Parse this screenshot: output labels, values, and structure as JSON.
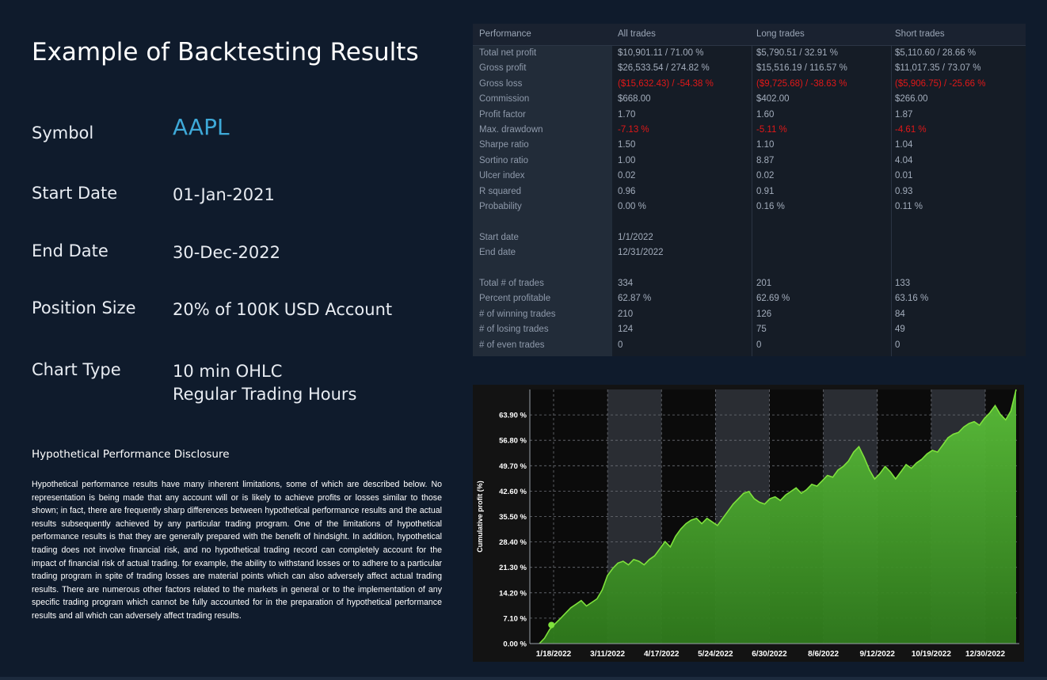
{
  "page": {
    "title": "Example of Backtesting Results"
  },
  "settings": [
    {
      "label": "Symbol",
      "value": "AAPL"
    },
    {
      "label": "Start Date",
      "value": "01-Jan-2021"
    },
    {
      "label": "End Date",
      "value": "30-Dec-2022"
    },
    {
      "label": "Position Size",
      "value": "20% of 100K USD Account"
    },
    {
      "label": "Chart Type",
      "value": "10 min OHLC",
      "value2": "Regular Trading Hours"
    }
  ],
  "disclosure": {
    "heading": "Hypothetical Performance Disclosure",
    "text": "Hypothetical performance results have many inherent limitations, some of which are described below. No representation is being made that any account will or is likely to achieve profits or losses similar to those shown; in fact, there are frequently sharp differences between hypothetical performance results and the actual results subsequently achieved by any particular trading program. One of the limitations of hypothetical performance results is that they are generally prepared with the benefit of hindsight. In addition, hypothetical trading does not involve financial risk, and no hypothetical trading record can completely account for the impact of financial risk of actual trading. for example, the ability to withstand losses or to adhere to a particular trading program in spite of trading losses are material points which can also adversely affect actual trading results. There are numerous other factors related to the markets in general or to the implementation of any specific trading program which cannot be fully accounted for in the preparation of hypothetical performance results and all which can adversely affect trading results."
  },
  "performance_table": {
    "headers": [
      "Performance",
      "All trades",
      "Long trades",
      "Short trades"
    ],
    "rows": [
      {
        "label": "Total net profit",
        "all": "$10,901.11 / 71.00 %",
        "long": "$5,790.51 / 32.91 %",
        "short": "$5,110.60 / 28.66 %"
      },
      {
        "label": "Gross profit",
        "all": "$26,533.54 / 274.82 %",
        "long": "$15,516.19 / 116.57 %",
        "short": "$11,017.35 / 73.07 %"
      },
      {
        "label": "Gross loss",
        "all": "($15,632.43) / -54.38 %",
        "long": "($9,725.68) / -38.63 %",
        "short": "($5,906.75) / -25.66 %",
        "negative": true
      },
      {
        "label": "Commission",
        "all": "$668.00",
        "long": "$402.00",
        "short": "$266.00"
      },
      {
        "label": "Profit factor",
        "all": "1.70",
        "long": "1.60",
        "short": "1.87"
      },
      {
        "label": "Max. drawdown",
        "all": "-7.13 %",
        "long": "-5.11 %",
        "short": "-4.61 %",
        "negative": true
      },
      {
        "label": "Sharpe ratio",
        "all": "1.50",
        "long": "1.10",
        "short": "1.04"
      },
      {
        "label": "Sortino ratio",
        "all": "1.00",
        "long": "8.87",
        "short": "4.04"
      },
      {
        "label": "Ulcer index",
        "all": "0.02",
        "long": "0.02",
        "short": "0.01"
      },
      {
        "label": "R squared",
        "all": "0.96",
        "long": "0.91",
        "short": "0.93"
      },
      {
        "label": "Probability",
        "all": "0.00 %",
        "long": "0.16 %",
        "short": "0.11 %"
      },
      {
        "label": "",
        "all": "",
        "long": "",
        "short": ""
      },
      {
        "label": "Start date",
        "all": "1/1/2022",
        "long": "",
        "short": ""
      },
      {
        "label": "End date",
        "all": "12/31/2022",
        "long": "",
        "short": ""
      },
      {
        "label": "",
        "all": "",
        "long": "",
        "short": ""
      },
      {
        "label": "Total # of trades",
        "all": "334",
        "long": "201",
        "short": "133"
      },
      {
        "label": "Percent profitable",
        "all": "62.87 %",
        "long": "62.69 %",
        "short": "63.16 %"
      },
      {
        "label": "# of winning trades",
        "all": "210",
        "long": "126",
        "short": "84"
      },
      {
        "label": "# of losing trades",
        "all": "124",
        "long": "75",
        "short": "49"
      },
      {
        "label": "# of even trades",
        "all": "0",
        "long": "0",
        "short": "0"
      }
    ],
    "colors": {
      "negative": "#e01818",
      "text": "#a3adbc",
      "label": "#8f9aab"
    }
  },
  "chart_data": {
    "type": "area",
    "ylabel": "Cumulative profit (%)",
    "ylim": [
      0,
      71
    ],
    "y_ticks": [
      "0.00 %",
      "7.10 %",
      "14.20 %",
      "21.30 %",
      "28.40 %",
      "35.50 %",
      "42.60 %",
      "49.70 %",
      "56.80 %",
      "63.90 %"
    ],
    "y_tick_values": [
      0,
      7.1,
      14.2,
      21.3,
      28.4,
      35.5,
      42.6,
      49.7,
      56.8,
      63.9
    ],
    "x_ticks": [
      "1/18/2022",
      "3/11/2022",
      "4/17/2022",
      "5/24/2022",
      "6/30/2022",
      "8/6/2022",
      "9/12/2022",
      "10/19/2022",
      "12/30/2022"
    ],
    "grid": true,
    "fill_color": "#4ea82c",
    "line_color": "#7fe23c",
    "series": [
      {
        "values": [
          0.0,
          1.5,
          4.0,
          5.5,
          7.0,
          8.5,
          10.0,
          11.0,
          12.0,
          10.5,
          11.5,
          12.5,
          15.0,
          19.0,
          21.0,
          22.5,
          23.0,
          22.0,
          23.5,
          23.0,
          22.0,
          23.5,
          24.5,
          26.5,
          28.5,
          27.0,
          30.0,
          32.0,
          33.5,
          34.5,
          35.0,
          33.5,
          35.0,
          34.0,
          33.0,
          35.0,
          37.0,
          39.0,
          40.5,
          42.0,
          42.5,
          40.5,
          39.5,
          39.0,
          40.5,
          41.0,
          40.0,
          41.5,
          42.5,
          43.5,
          42.0,
          43.0,
          44.5,
          44.0,
          45.5,
          47.0,
          46.5,
          48.5,
          49.5,
          51.0,
          53.5,
          55.0,
          52.0,
          48.5,
          46.0,
          47.5,
          49.5,
          48.0,
          46.0,
          48.0,
          50.0,
          49.0,
          50.5,
          51.5,
          53.0,
          54.0,
          53.5,
          55.5,
          57.5,
          58.5,
          59.0,
          60.5,
          61.5,
          62.0,
          61.0,
          63.0,
          64.5,
          66.5,
          64.0,
          62.5,
          65.0,
          71.0
        ]
      }
    ]
  }
}
